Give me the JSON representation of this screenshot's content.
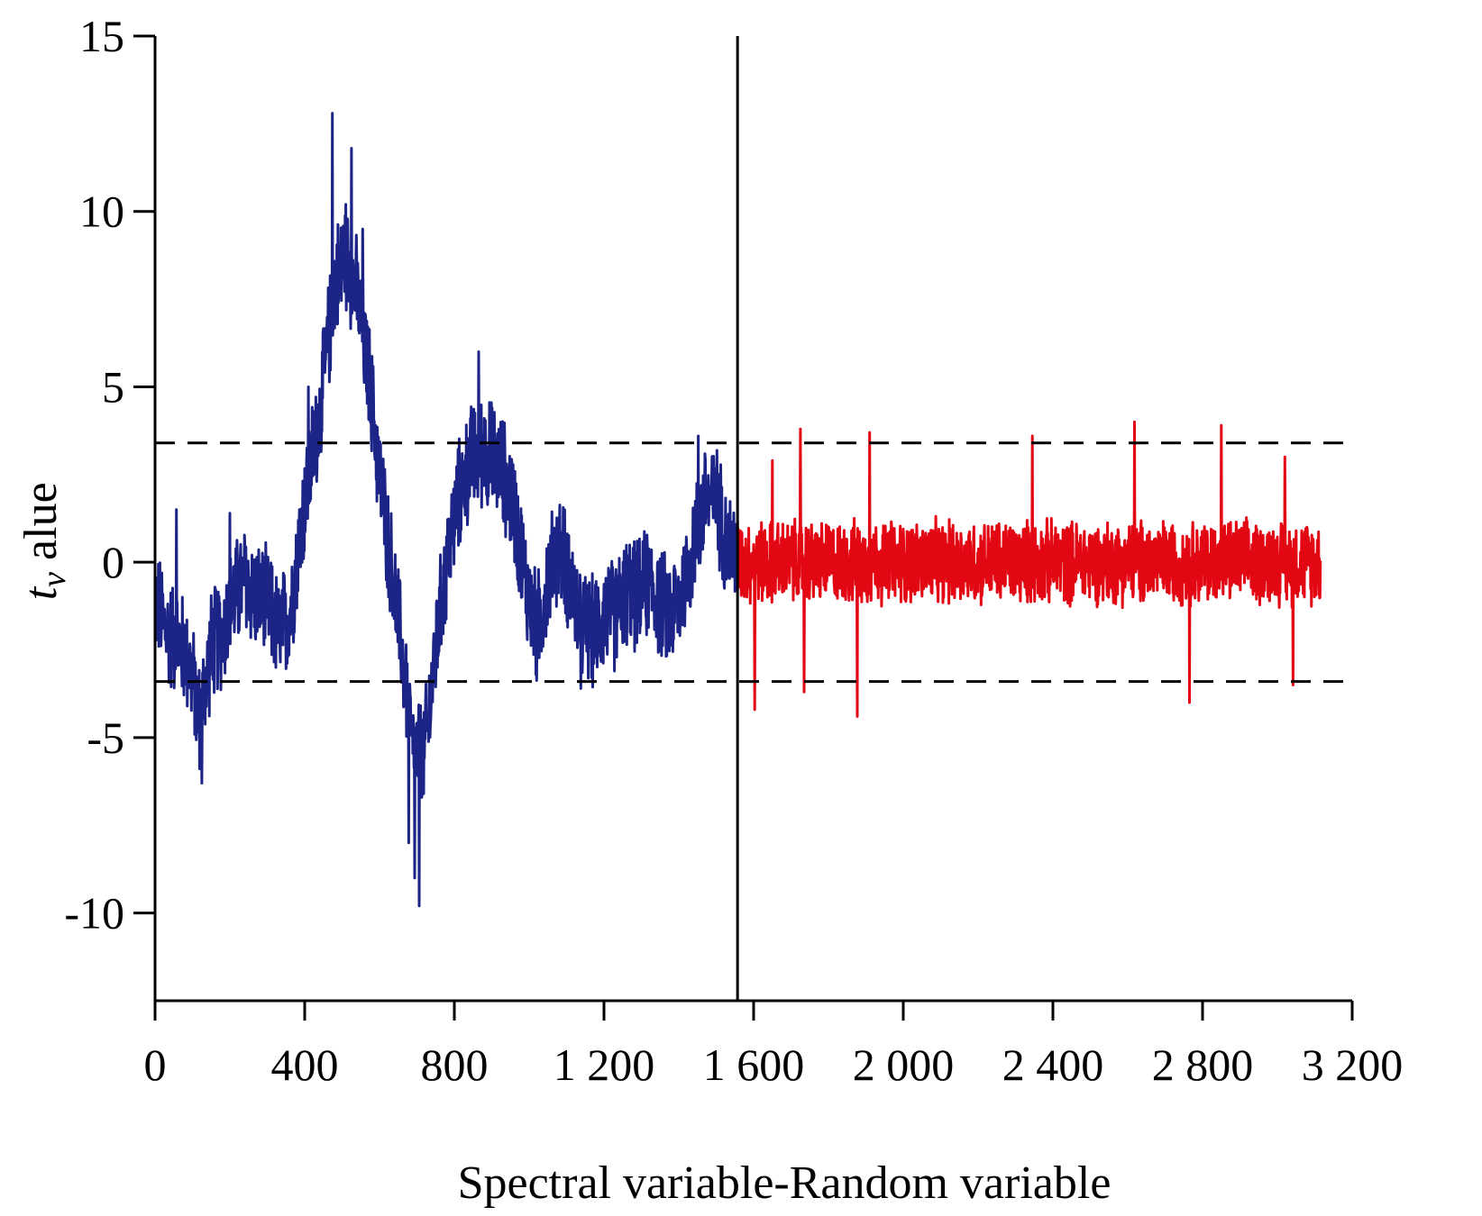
{
  "chart_data": {
    "type": "line",
    "xlabel": "Spectral variable-Random variable",
    "ylabel_symbol": "t",
    "ylabel_subscript": "v",
    "ylabel_rest": " alue",
    "xlim": [
      0,
      3200
    ],
    "ylim": [
      -12.5,
      15
    ],
    "x_ticks": [
      0,
      400,
      800,
      1200,
      1600,
      2000,
      2400,
      2800,
      3200
    ],
    "x_tick_labels": [
      "0",
      "400",
      "800",
      "1 200",
      "1 600",
      "2 000",
      "2 400",
      "2 800",
      "3 200"
    ],
    "y_ticks": [
      -10,
      -5,
      0,
      5,
      10,
      15
    ],
    "y_tick_labels": [
      "-10",
      "-5",
      "0",
      "5",
      "10",
      "15"
    ],
    "threshold_upper": 3.4,
    "threshold_lower": -3.4,
    "divider_x": 1557,
    "grid": false,
    "colors": {
      "spectral": "#1c2487",
      "random": "#e30613",
      "axis": "#000000"
    },
    "series": [
      {
        "x_start": 0,
        "x_end": 1557,
        "sampling_step": 30,
        "noise_amplitude": 1.8,
        "trend": [
          [
            0,
            -1.0
          ],
          [
            30,
            -2.0
          ],
          [
            60,
            -2.2
          ],
          [
            90,
            -2.8
          ],
          [
            120,
            -4.5
          ],
          [
            150,
            -2.4
          ],
          [
            180,
            -2.0
          ],
          [
            210,
            -1.0
          ],
          [
            240,
            -0.5
          ],
          [
            270,
            -1.0
          ],
          [
            300,
            -1.2
          ],
          [
            330,
            -2.0
          ],
          [
            360,
            -1.5
          ],
          [
            390,
            1.0
          ],
          [
            420,
            3.0
          ],
          [
            450,
            5.0
          ],
          [
            480,
            8.0
          ],
          [
            510,
            8.8
          ],
          [
            540,
            7.6
          ],
          [
            570,
            5.5
          ],
          [
            600,
            2.5
          ],
          [
            630,
            0.0
          ],
          [
            660,
            -2.5
          ],
          [
            690,
            -5.5
          ],
          [
            720,
            -5.5
          ],
          [
            750,
            -2.5
          ],
          [
            780,
            0.0
          ],
          [
            810,
            1.8
          ],
          [
            840,
            2.8
          ],
          [
            870,
            3.2
          ],
          [
            900,
            3.0
          ],
          [
            930,
            2.6
          ],
          [
            960,
            1.5
          ],
          [
            990,
            -0.5
          ],
          [
            1020,
            -2.0
          ],
          [
            1050,
            -0.5
          ],
          [
            1080,
            0.5
          ],
          [
            1110,
            -0.5
          ],
          [
            1140,
            -1.8
          ],
          [
            1170,
            -2.0
          ],
          [
            1200,
            -1.5
          ],
          [
            1230,
            -1.5
          ],
          [
            1260,
            -0.8
          ],
          [
            1290,
            -1.0
          ],
          [
            1320,
            -0.5
          ],
          [
            1350,
            -1.2
          ],
          [
            1380,
            -1.5
          ],
          [
            1410,
            -0.8
          ],
          [
            1440,
            0.5
          ],
          [
            1470,
            1.8
          ],
          [
            1500,
            1.8
          ],
          [
            1530,
            0.5
          ],
          [
            1557,
            0.2
          ]
        ],
        "peaks": [
          [
            474,
            12.8
          ],
          [
            525,
            11.8
          ],
          [
            490,
            9.0
          ],
          [
            555,
            9.5
          ],
          [
            563,
            7.0
          ],
          [
            865,
            6.0
          ],
          [
            880,
            4.1
          ],
          [
            1452,
            3.6
          ],
          [
            57,
            1.5
          ],
          [
            200,
            1.4
          ],
          [
            125,
            -6.3
          ],
          [
            706,
            -9.8
          ],
          [
            694,
            -9.0
          ],
          [
            678,
            -8.0
          ],
          [
            490,
            7.4
          ],
          [
            510,
            10.2
          ],
          [
            410,
            5.0
          ],
          [
            320,
            -2.3
          ],
          [
            1138,
            -3.6
          ]
        ]
      },
      {
        "x_start": 1557,
        "x_end": 3115,
        "sampling_step": 2,
        "noise_amplitude": 1.35,
        "trend": [
          [
            1557,
            0.0
          ],
          [
            3115,
            0.0
          ]
        ],
        "peaks": [
          [
            1603,
            -4.2
          ],
          [
            1725,
            3.8
          ],
          [
            1735,
            -3.7
          ],
          [
            1877,
            -4.4
          ],
          [
            1910,
            3.7
          ],
          [
            2345,
            3.6
          ],
          [
            2618,
            4.0
          ],
          [
            2765,
            -4.0
          ],
          [
            2850,
            3.9
          ],
          [
            3042,
            -3.5
          ],
          [
            3020,
            3.0
          ],
          [
            1650,
            2.9
          ]
        ]
      }
    ]
  }
}
